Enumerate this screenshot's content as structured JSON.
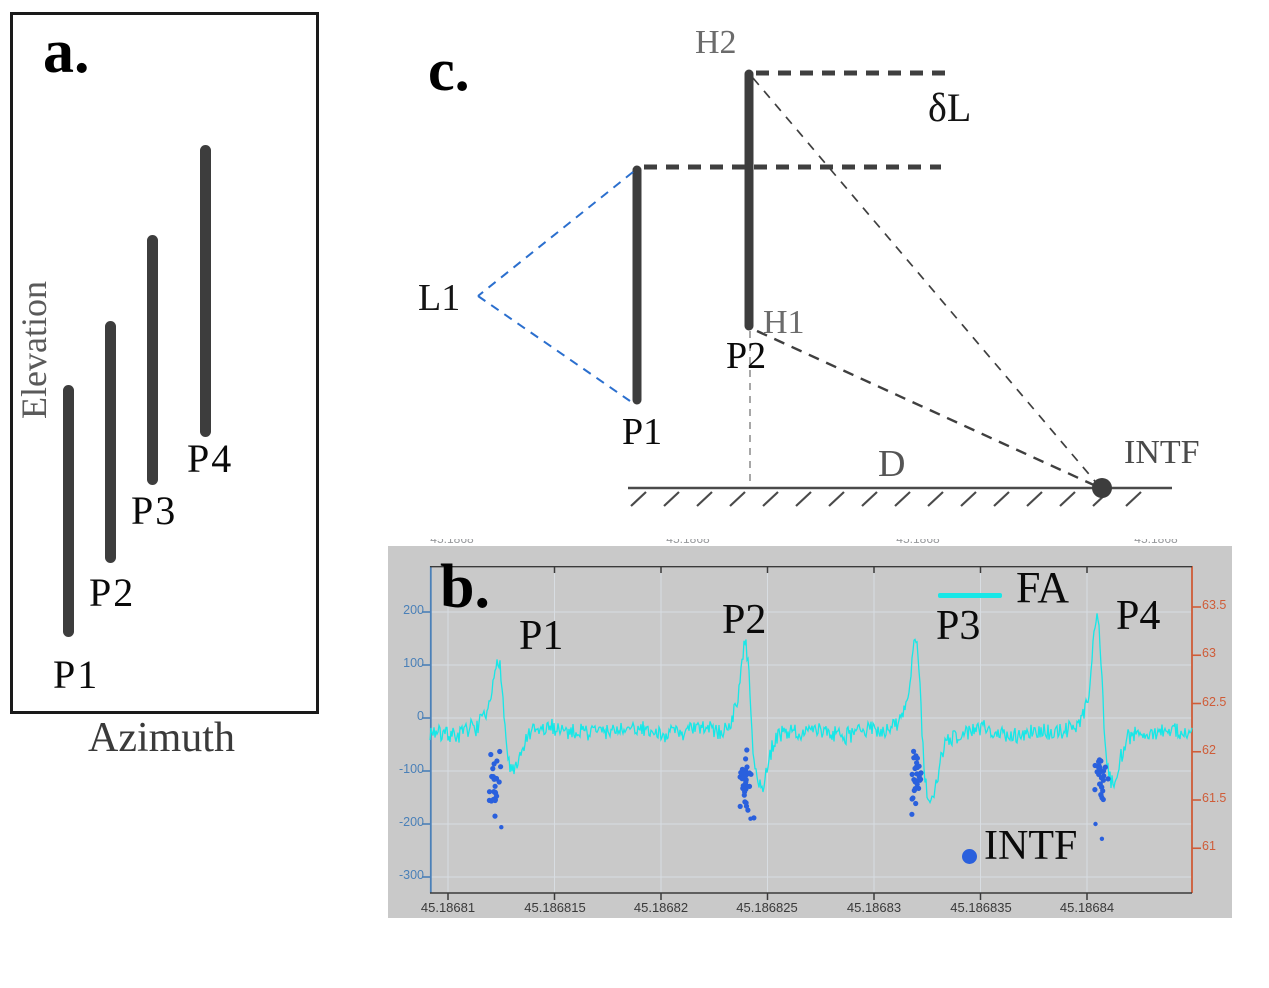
{
  "panel_a": {
    "label": "a.",
    "ylabel": "Elevation",
    "xlabel": "Azimuth",
    "bar_color": "#3d3d3d",
    "bars": [
      {
        "label": "P1"
      },
      {
        "label": "P2"
      },
      {
        "label": "P3"
      },
      {
        "label": "P4"
      }
    ]
  },
  "panel_c": {
    "label": "c.",
    "labels": {
      "h2": "H2",
      "delta_l": "δL",
      "l1": "L1",
      "h1": "H1",
      "p2": "P2",
      "p1": "P1",
      "d": "D",
      "intf": "INTF"
    },
    "colors": {
      "pole": "#3d3d3d",
      "dashed_dark": "#3f3f3f",
      "dashed_blue": "#2b6fce",
      "ground": "#4a4a4a"
    }
  },
  "panel_b": {
    "label": "b.",
    "pulse_labels": [
      "P1",
      "P2",
      "P3",
      "P4"
    ],
    "legend": {
      "line_label": "FA",
      "scatter_label": "INTF"
    },
    "background": "#c9c9c9"
  },
  "chart_data": {
    "type": "line",
    "title": "",
    "xlabel": "",
    "ylabel": "",
    "grid": true,
    "background": "#c9c9c9",
    "x_axis": {
      "ticks": [
        45.18681,
        45.186815,
        45.18682,
        45.186825,
        45.18683,
        45.186835,
        45.18684
      ],
      "labels": [
        "45.18681",
        "45.186815",
        "45.18682",
        "45.186825",
        "45.18683",
        "45.186835",
        "45.18684"
      ],
      "range": [
        45.186809,
        45.186845
      ],
      "color": "#3a3a3a"
    },
    "left_axis": {
      "ticks": [
        200,
        100,
        0,
        -100,
        -200,
        -300
      ],
      "labels": [
        "200",
        "100",
        "0",
        "-100",
        "-200",
        "-300"
      ],
      "range": [
        -330,
        290
      ],
      "color": "#4a80b8"
    },
    "right_axis": {
      "ticks": [
        63.5,
        63,
        62.5,
        62,
        61.5,
        61
      ],
      "labels": [
        "63.5",
        "63",
        "62.5",
        "62",
        "61.5",
        "61"
      ],
      "range": [
        60.5,
        63.9
      ],
      "color": "#cf5c38"
    },
    "top_labels": [
      "45.1868",
      "45.1868",
      "45.1868",
      "45.1868"
    ],
    "series": [
      {
        "name": "FA",
        "type": "line",
        "color": "#17e7e7",
        "baseline": -25,
        "noise_amplitude": 22,
        "pulses": [
          {
            "label": "P1",
            "x": 45.1868124,
            "peak": 124,
            "dip": -105
          },
          {
            "label": "P2",
            "x": 45.186824,
            "peak": 150,
            "dip": -135
          },
          {
            "label": "P3",
            "x": 45.186832,
            "peak": 170,
            "dip": -170
          },
          {
            "label": "P4",
            "x": 45.1868405,
            "peak": 205,
            "dip": -123
          }
        ]
      },
      {
        "name": "INTF",
        "type": "scatter",
        "color": "#2a60dd",
        "clusters": [
          {
            "x": 45.1868122,
            "y_center": -135,
            "y_spread": 38,
            "n": 28
          },
          {
            "x": 45.186824,
            "y_center": -125,
            "y_spread": 36,
            "n": 30
          },
          {
            "x": 45.186832,
            "y_center": -118,
            "y_spread": 34,
            "n": 30
          },
          {
            "x": 45.1868406,
            "y_center": -112,
            "y_spread": 30,
            "n": 26
          }
        ],
        "stray_points": [
          [
            45.1868125,
            -206
          ],
          [
            45.1868242,
            -190
          ],
          [
            45.1868404,
            -200
          ],
          [
            45.1868407,
            -228
          ]
        ]
      }
    ]
  }
}
